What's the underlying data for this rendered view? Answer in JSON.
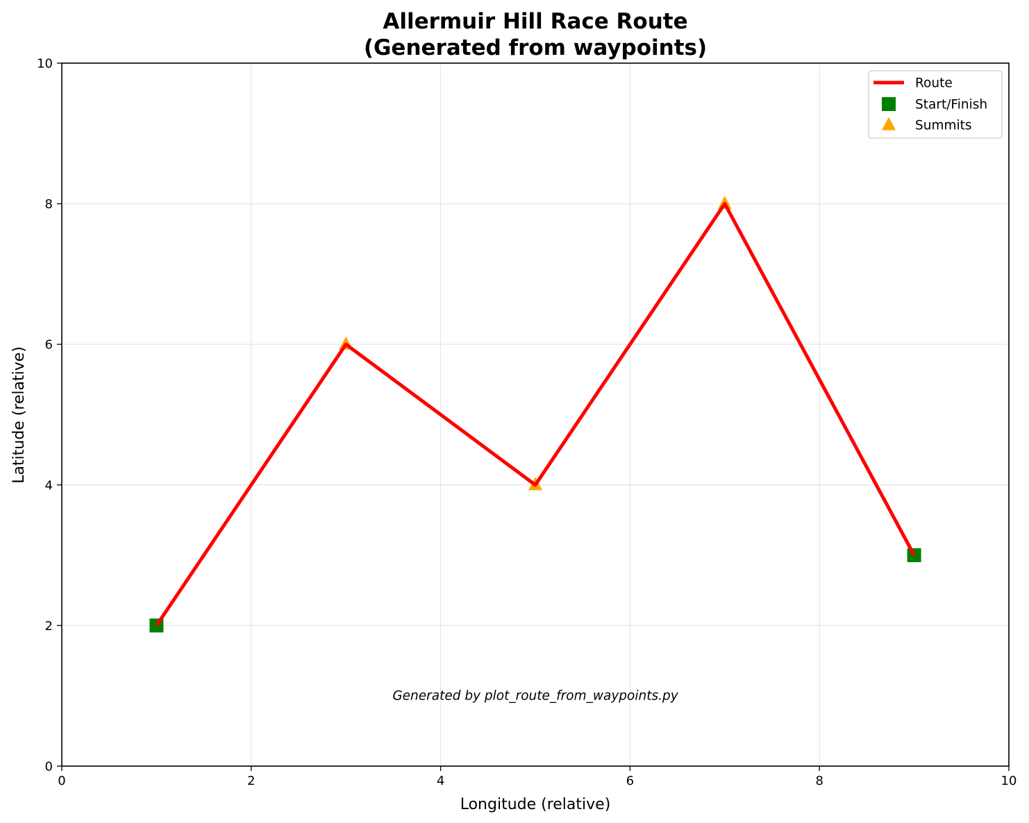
{
  "chart_data": {
    "type": "line",
    "title_lines": [
      "Allermuir Hill Race Route",
      "(Generated from waypoints)"
    ],
    "xlabel": "Longitude (relative)",
    "ylabel": "Latitude (relative)",
    "xlim": [
      0,
      10
    ],
    "ylim": [
      0,
      10
    ],
    "x_ticks": [
      0,
      2,
      4,
      6,
      8,
      10
    ],
    "y_ticks": [
      0,
      2,
      4,
      6,
      8,
      10
    ],
    "grid": true,
    "legend_position": "top-right",
    "series": [
      {
        "name": "Route",
        "kind": "line",
        "color": "#ff0000",
        "points": [
          [
            1,
            2
          ],
          [
            3,
            6
          ],
          [
            5,
            4
          ],
          [
            7,
            8
          ],
          [
            9,
            3
          ]
        ]
      },
      {
        "name": "Start/Finish",
        "kind": "scatter",
        "marker": "square",
        "color": "#008000",
        "points": [
          [
            1,
            2
          ],
          [
            9,
            3
          ]
        ]
      },
      {
        "name": "Summits",
        "kind": "scatter",
        "marker": "triangle",
        "color": "#ffa500",
        "points": [
          [
            3,
            6
          ],
          [
            5,
            4
          ],
          [
            7,
            8
          ]
        ]
      }
    ],
    "annotation": {
      "text": "Generated by plot_route_from_waypoints.py",
      "x": 5,
      "y": 1
    }
  }
}
